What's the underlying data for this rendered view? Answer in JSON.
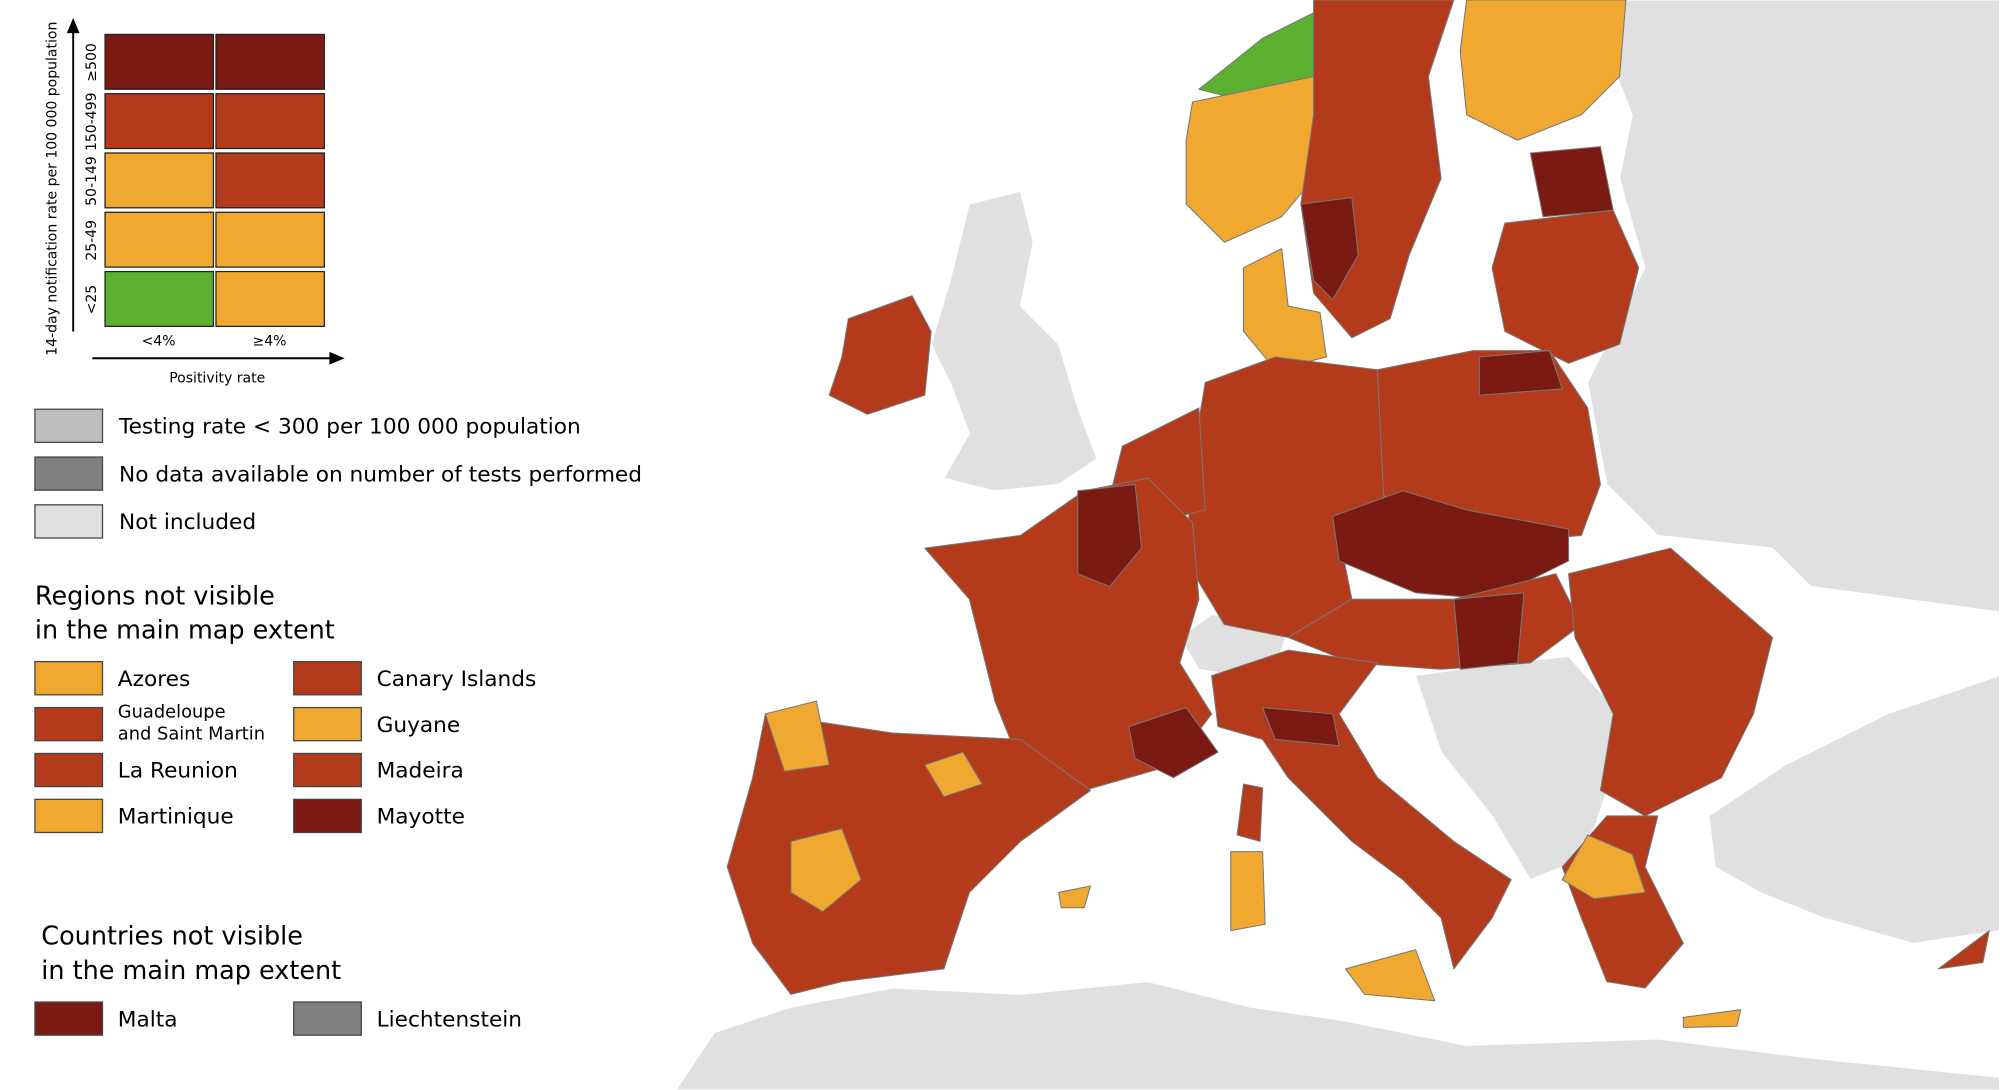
{
  "legend": {
    "y_axis_label": "14-day notification rate per 100 000 population",
    "x_axis_label": "Positivity rate",
    "rows": [
      "≥500",
      "150-499",
      "50-149",
      "25-49",
      "<25"
    ],
    "columns": [
      "<4%",
      "≥4%"
    ],
    "cells": [
      [
        "#7b1a12",
        "#7b1a12"
      ],
      [
        "#b33a1a",
        "#b33a1a"
      ],
      [
        "#f0a830",
        "#b33a1a"
      ],
      [
        "#f0a830",
        "#f0a830"
      ],
      [
        "#5bb030",
        "#f0a830"
      ]
    ]
  },
  "grey_keys": [
    {
      "label": "Testing rate < 300 per 100 000 population",
      "color": "#bdbdbd"
    },
    {
      "label": "No data available on number of tests performed",
      "color": "#808080"
    },
    {
      "label": "Not included",
      "color": "#e0e0e0"
    }
  ],
  "regions": {
    "title": [
      "Regions not visible",
      "in the main map extent"
    ],
    "items": [
      {
        "name": "Azores",
        "color": "#f0a830"
      },
      {
        "name": "Canary Islands",
        "color": "#b33a1a"
      },
      {
        "name": [
          "Guadeloupe",
          "and Saint Martin"
        ],
        "color": "#b33a1a"
      },
      {
        "name": "Guyane",
        "color": "#f0a830"
      },
      {
        "name": "La Reunion",
        "color": "#b33a1a"
      },
      {
        "name": "Madeira",
        "color": "#b33a1a"
      },
      {
        "name": "Martinique",
        "color": "#f0a830"
      },
      {
        "name": "Mayotte",
        "color": "#7b1a12"
      }
    ]
  },
  "countries": {
    "title": [
      "Countries not visible",
      "in the main map extent"
    ],
    "items": [
      {
        "name": "Malta",
        "color": "#7b1a12"
      },
      {
        "name": "Liechtenstein",
        "color": "#808080"
      }
    ]
  }
}
